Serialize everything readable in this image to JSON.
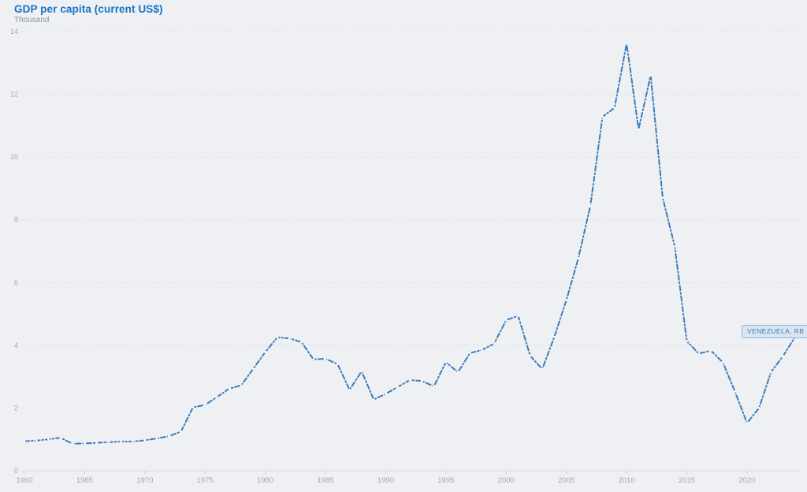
{
  "page": {
    "background": "#eef0f4"
  },
  "header": {
    "title": "GDP per capita (current US$)",
    "subtitle": "Thousand"
  },
  "series_label": {
    "text": "VENEZUELA, RB"
  },
  "colors": {
    "title": "#1773c6",
    "subtitle": "#8d939c",
    "line": "#3e7cba",
    "marker_fill": "#fafbfd",
    "gridline": "#dcdfe4",
    "axis_line": "#d5d8dd",
    "tick_mark": "#c9ccd2",
    "tick_label": "#a6a9ae",
    "tooltip_bg": "#d8e6f3",
    "tooltip_border": "#8fb3d9",
    "tooltip_text": "#4377ad"
  },
  "chart_data": {
    "type": "line",
    "title": "GDP per capita (current US$)",
    "unit_label": "Thousand",
    "xlabel": "",
    "ylabel": "Thousand (current US$)",
    "xlim": [
      1960,
      2024
    ],
    "ylim": [
      0,
      14
    ],
    "y_ticks": [
      0,
      2,
      4,
      6,
      8,
      10,
      12,
      14
    ],
    "x_ticks": [
      1960,
      1965,
      1970,
      1975,
      1980,
      1985,
      1990,
      1995,
      2000,
      2005,
      2010,
      2015,
      2020
    ],
    "grid": "horizontal-dashed",
    "legend_position": "tooltip-near-last-point",
    "line_style": "dash-dot with point markers",
    "series": [
      {
        "name": "VENEZUELA, RB",
        "x": [
          1960,
          1961,
          1962,
          1963,
          1964,
          1965,
          1966,
          1967,
          1968,
          1969,
          1970,
          1971,
          1972,
          1973,
          1974,
          1975,
          1976,
          1977,
          1978,
          1979,
          1980,
          1981,
          1982,
          1983,
          1984,
          1985,
          1986,
          1987,
          1988,
          1989,
          1990,
          1991,
          1992,
          1993,
          1994,
          1995,
          1996,
          1997,
          1998,
          1999,
          2000,
          2001,
          2002,
          2003,
          2004,
          2005,
          2006,
          2007,
          2008,
          2009,
          2010,
          2011,
          2012,
          2013,
          2014,
          2015,
          2016,
          2017,
          2018,
          2019,
          2020,
          2021,
          2022,
          2023,
          2024
        ],
        "values": [
          0.94,
          0.96,
          1.0,
          1.05,
          0.86,
          0.87,
          0.89,
          0.91,
          0.93,
          0.93,
          0.97,
          1.03,
          1.1,
          1.25,
          2.02,
          2.1,
          2.35,
          2.62,
          2.72,
          3.25,
          3.78,
          4.25,
          4.22,
          4.1,
          3.55,
          3.57,
          3.4,
          2.58,
          3.17,
          2.27,
          2.45,
          2.67,
          2.89,
          2.86,
          2.69,
          3.46,
          3.14,
          3.75,
          3.85,
          4.05,
          4.8,
          4.94,
          3.66,
          3.24,
          4.27,
          5.44,
          6.78,
          8.45,
          11.28,
          11.57,
          13.62,
          10.88,
          12.6,
          8.7,
          7.15,
          4.13,
          3.73,
          3.83,
          3.45,
          2.52,
          1.52,
          2.0,
          3.15,
          3.66,
          4.27
        ]
      }
    ]
  }
}
